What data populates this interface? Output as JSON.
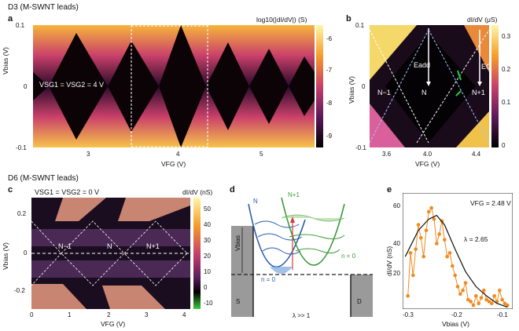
{
  "sections": {
    "top": "D3 (M-SWNT leads)",
    "bottom": "D6 (M-SWNT leads)"
  },
  "panel_labels": [
    "a",
    "b",
    "c",
    "d",
    "e"
  ],
  "panel_a": {
    "cbar_label": "log10(|dI/dV|) (S)",
    "cbar_ticks": [
      "-6",
      "-7",
      "-8",
      "-9"
    ],
    "x_label": "VFG (V)",
    "y_label": "Vbias (V)",
    "x_ticks": [
      "3",
      "4",
      "5"
    ],
    "y_ticks": [
      "0.1",
      "0",
      "-0.1"
    ],
    "annotation": "VSG1 = VSG2 = 4 V"
  },
  "panel_b": {
    "cbar_label": "dI/dV (μS)",
    "cbar_ticks": [
      "0.3",
      "0.2",
      "0.1",
      "0"
    ],
    "x_label": "VFG (V)",
    "y_label": "Vbias (V)",
    "x_ticks": [
      "3.6",
      "4.0",
      "4.4"
    ],
    "y_ticks": [
      "0.1",
      "0",
      "-0.1"
    ],
    "labels": [
      "N−1",
      "N",
      "N+1",
      "Eadd",
      "EC"
    ]
  },
  "panel_c": {
    "cbar_label": "dI/dV (nS)",
    "cbar_ticks": [
      "50",
      "40",
      "30",
      "20",
      "10",
      "0",
      "-10"
    ],
    "x_label": "VFG (V)",
    "y_label": "Vbias (V)",
    "x_ticks": [
      "0",
      "1",
      "2",
      "3",
      "4"
    ],
    "y_ticks": [
      "0.2",
      "0",
      "-0.2"
    ],
    "annotation": "VSG1 = VSG2 = 0 V",
    "labels": [
      "N−1",
      "N",
      "N+1"
    ]
  },
  "panel_d": {
    "labels": {
      "N": "N",
      "N1": "N+1",
      "n0_left": "n = 0",
      "n0_right": "n = 0",
      "vbias": "Vbias",
      "S": "S",
      "D": "D",
      "lambda": "λ >> 1"
    }
  },
  "panel_e": {
    "annotation": "VFG = 2.48 V",
    "lambda": "λ = 2.65",
    "x_label": "Vbias (V)",
    "y_label": "dI/dV (nS)",
    "x_ticks": [
      "-0.3",
      "-0.2",
      "-0.1"
    ],
    "y_ticks": [
      "20",
      "40",
      "60"
    ]
  },
  "chart_data": {
    "type": "scatter",
    "title": "",
    "xlabel": "Vbias (V)",
    "ylabel": "dI/dV (nS)",
    "xlim": [
      -0.31,
      -0.1
    ],
    "ylim": [
      10,
      72
    ],
    "series": [
      {
        "x": [
          -0.3,
          -0.295,
          -0.29,
          -0.285,
          -0.28,
          -0.275,
          -0.27,
          -0.265,
          -0.26,
          -0.255,
          -0.25,
          -0.245,
          -0.24,
          -0.235,
          -0.23,
          -0.225,
          -0.22,
          -0.215,
          -0.21,
          -0.205,
          -0.2,
          -0.195,
          -0.19,
          -0.185,
          -0.18,
          -0.175,
          -0.17,
          -0.165,
          -0.16,
          -0.155,
          -0.15,
          -0.145,
          -0.14,
          -0.135,
          -0.13,
          -0.125,
          -0.12,
          -0.115,
          -0.11
        ],
        "y": [
          17,
          40,
          28,
          42,
          55,
          48,
          38,
          52,
          62,
          64,
          58,
          45,
          50,
          57,
          47,
          38,
          40,
          33,
          28,
          22,
          18,
          20,
          24,
          15,
          14,
          12,
          17,
          13,
          16,
          20,
          15,
          14,
          13,
          17,
          14,
          20,
          15,
          13,
          12
        ]
      },
      {
        "x": [
          -0.305,
          -0.28,
          -0.26,
          -0.245,
          -0.23,
          -0.21,
          -0.19,
          -0.17,
          -0.15,
          -0.13,
          -0.11
        ],
        "y": [
          38,
          52,
          58,
          60,
          55,
          42,
          30,
          22,
          17,
          13,
          11
        ]
      }
    ]
  }
}
